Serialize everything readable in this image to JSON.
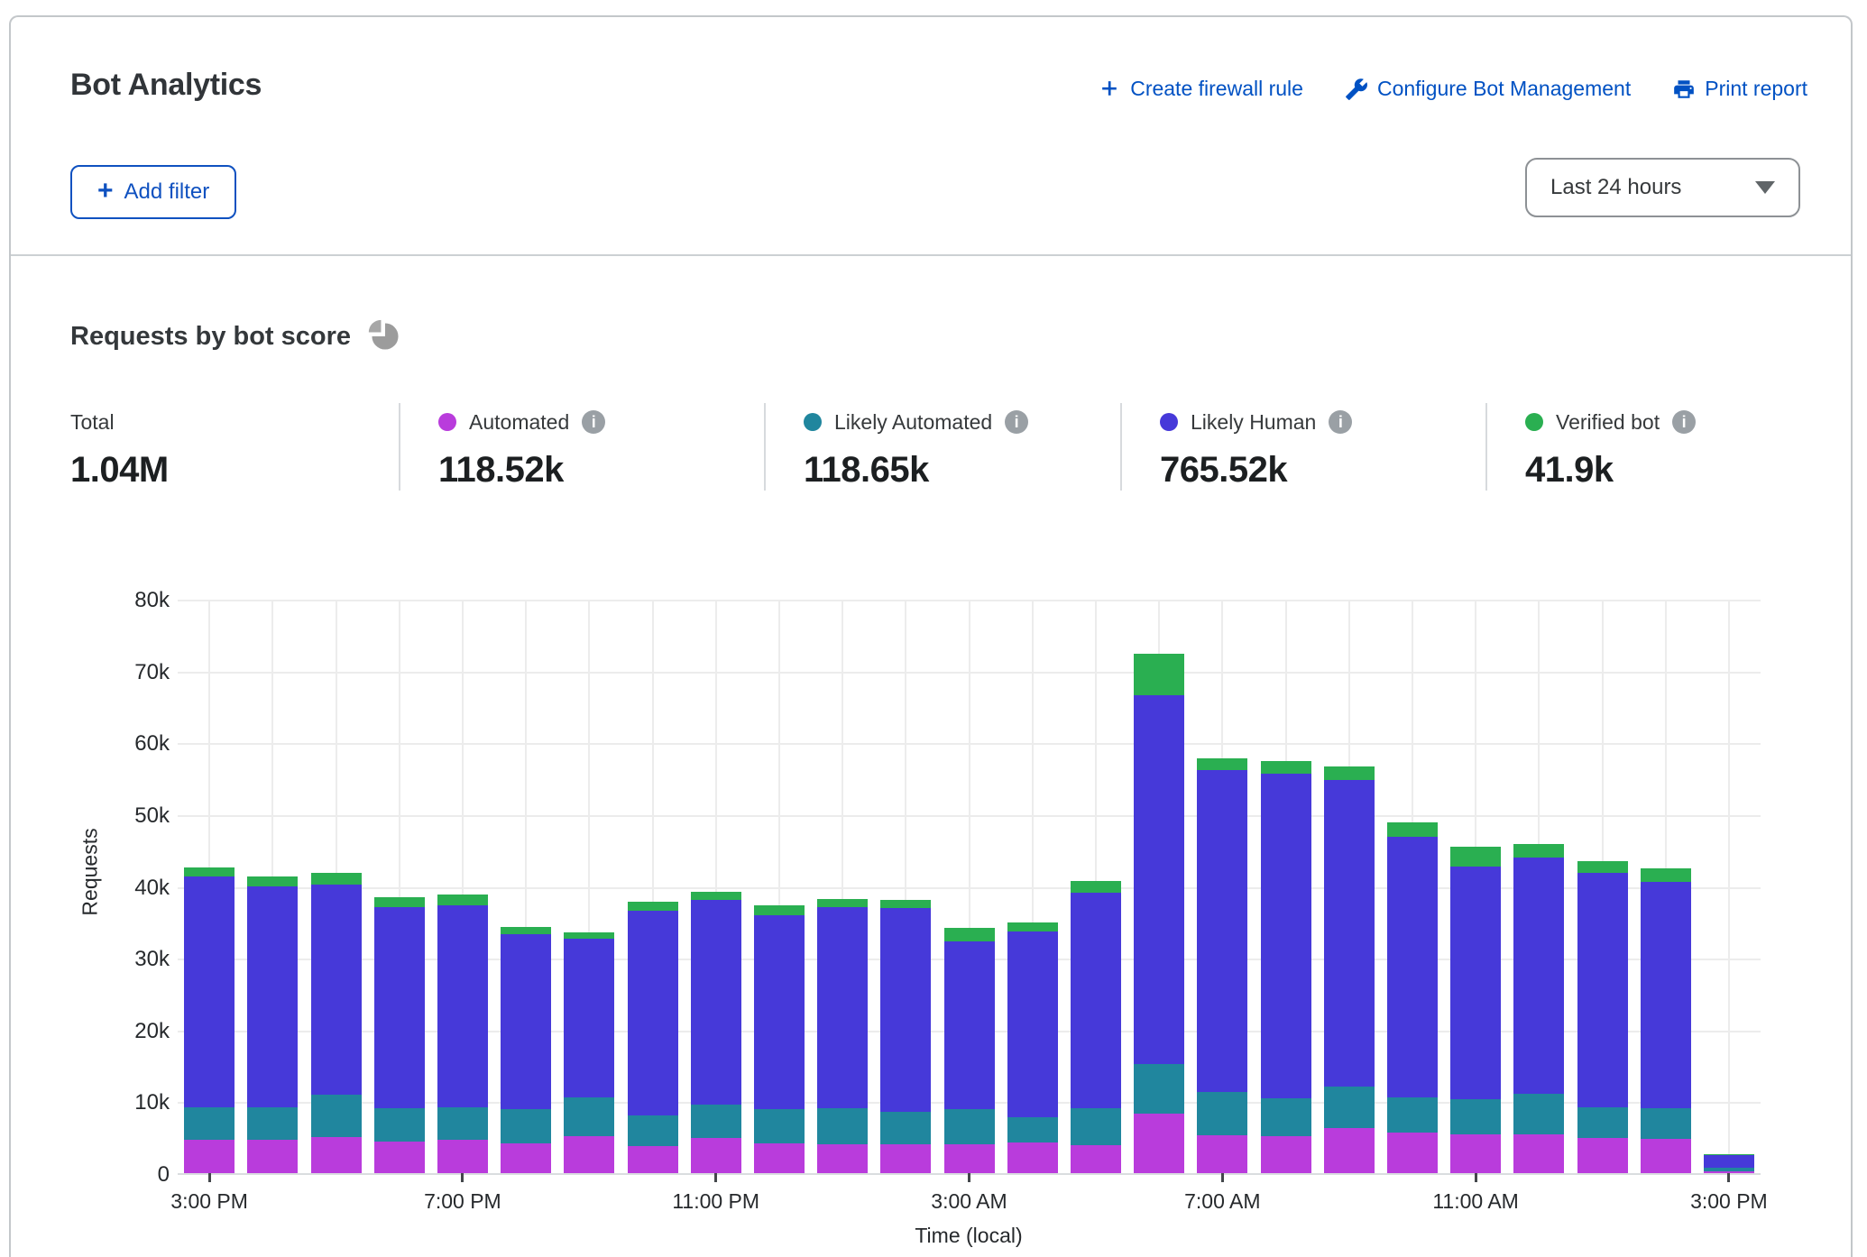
{
  "header": {
    "title": "Bot Analytics",
    "actions": [
      {
        "label": "Create firewall rule",
        "icon": "plus-icon"
      },
      {
        "label": "Configure Bot Management",
        "icon": "wrench-icon"
      },
      {
        "label": "Print report",
        "icon": "printer-icon"
      }
    ],
    "add_filter_label": "Add filter",
    "time_range": "Last 24 hours"
  },
  "section": {
    "heading": "Requests by bot score"
  },
  "stats": {
    "total": {
      "label": "Total",
      "value": "1.04M"
    },
    "items": [
      {
        "label": "Automated",
        "value": "118.52k",
        "color": "#b93cdc"
      },
      {
        "label": "Likely Automated",
        "value": "118.65k",
        "color": "#20869e"
      },
      {
        "label": "Likely Human",
        "value": "765.52k",
        "color": "#4639d9"
      },
      {
        "label": "Verified bot",
        "value": "41.9k",
        "color": "#2aaf51"
      }
    ]
  },
  "chart_data": {
    "type": "bar",
    "stacked": true,
    "title": "Requests by bot score",
    "xlabel": "Time (local)",
    "ylabel": "Requests",
    "ylim": [
      0,
      80000
    ],
    "grid": true,
    "legend_position": "top",
    "y_ticks": [
      "0",
      "10k",
      "20k",
      "30k",
      "40k",
      "50k",
      "60k",
      "70k",
      "80k"
    ],
    "x_tick_every": 4,
    "categories": [
      "3:00 PM",
      "4:00 PM",
      "5:00 PM",
      "6:00 PM",
      "7:00 PM",
      "8:00 PM",
      "9:00 PM",
      "10:00 PM",
      "11:00 PM",
      "12:00 AM",
      "1:00 AM",
      "2:00 AM",
      "3:00 AM",
      "4:00 AM",
      "5:00 AM",
      "6:00 AM",
      "7:00 AM",
      "8:00 AM",
      "9:00 AM",
      "10:00 AM",
      "11:00 AM",
      "12:00 PM",
      "1:00 PM",
      "2:00 PM",
      "3:00 PM"
    ],
    "series": [
      {
        "name": "Automated",
        "color": "#b93cdc",
        "values": [
          4700,
          4700,
          5000,
          4400,
          4600,
          4200,
          5200,
          3800,
          4900,
          4200,
          4000,
          4000,
          4000,
          4300,
          3900,
          8300,
          5300,
          5100,
          6300,
          5600,
          5400,
          5400,
          4900,
          4800,
          300
        ]
      },
      {
        "name": "Likely Automated",
        "color": "#20869e",
        "values": [
          4500,
          4500,
          5900,
          4600,
          4600,
          4700,
          5300,
          4200,
          4600,
          4700,
          5000,
          4500,
          4900,
          3500,
          5200,
          6900,
          6000,
          5300,
          5800,
          4900,
          4900,
          5700,
          4300,
          4200,
          400
        ]
      },
      {
        "name": "Likely Human",
        "color": "#4639d9",
        "values": [
          32100,
          30700,
          29300,
          28000,
          28100,
          24400,
          22200,
          28600,
          28600,
          27000,
          28000,
          28400,
          23400,
          25800,
          30000,
          51400,
          44800,
          45200,
          42600,
          36400,
          32400,
          32900,
          32600,
          31600,
          1800
        ]
      },
      {
        "name": "Verified bot",
        "color": "#2aaf51",
        "values": [
          1300,
          1400,
          1600,
          1400,
          1500,
          1000,
          900,
          1200,
          1100,
          1400,
          1200,
          1200,
          1900,
          1300,
          1600,
          5800,
          1700,
          1800,
          1900,
          2000,
          2800,
          1800,
          1700,
          1800,
          100
        ]
      }
    ]
  }
}
